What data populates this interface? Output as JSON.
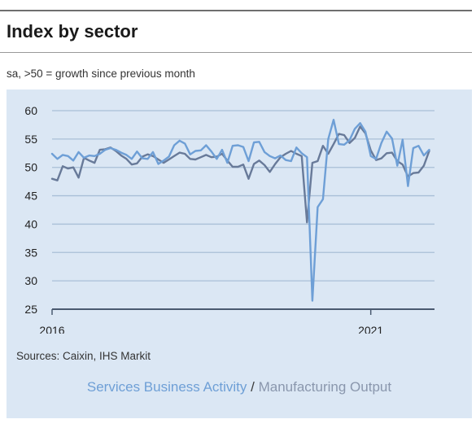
{
  "header": {
    "title": "Index by sector",
    "subtitle": "sa, >50 = growth since previous month"
  },
  "source": "Sources: Caixin, IHS Markit",
  "legend": {
    "separator": "/"
  },
  "colors": {
    "services": "#6e9fd6",
    "manufacturing": "#687a99",
    "grid": "#a9bfd7",
    "panel": "#dbe7f4",
    "axis": "#4a5a70"
  },
  "chart_data": {
    "type": "line",
    "title": "Index by sector",
    "subtitle": "sa, >50 = growth since previous month",
    "xlabel": "",
    "ylabel": "",
    "x_ticks": [
      "2016",
      "2021"
    ],
    "x_range": [
      2016.0,
      2022.0
    ],
    "y_ticks": [
      25,
      30,
      35,
      40,
      45,
      50,
      55,
      60
    ],
    "ylim": [
      25,
      60
    ],
    "grid": true,
    "legend_position": "bottom",
    "series": [
      {
        "name": "Services Business Activity",
        "start": 2016.0,
        "step": 0.0833333,
        "values": [
          52.4,
          51.5,
          52.2,
          52.0,
          51.2,
          52.7,
          51.7,
          52.1,
          52.0,
          52.4,
          53.1,
          53.4,
          53.1,
          52.6,
          52.2,
          51.5,
          52.8,
          51.6,
          51.5,
          52.7,
          50.6,
          51.2,
          51.9,
          53.9,
          54.7,
          54.2,
          52.3,
          52.9,
          53.0,
          53.9,
          52.8,
          51.5,
          53.1,
          50.8,
          53.8,
          53.9,
          53.6,
          51.1,
          54.4,
          54.5,
          52.7,
          52.0,
          51.6,
          52.1,
          51.3,
          51.1,
          53.5,
          52.5,
          51.8,
          26.5,
          43.0,
          44.4,
          55.0,
          58.4,
          54.1,
          54.0,
          54.8,
          56.8,
          57.8,
          56.3,
          52.0,
          51.5,
          54.3,
          56.3,
          55.1,
          50.3,
          54.9,
          46.7,
          53.4,
          53.8,
          52.1,
          53.1
        ],
        "values_note_unused": ""
      },
      {
        "name": "Manufacturing Output",
        "start": 2016.0,
        "step": 0.0833333,
        "values": [
          48.0,
          47.7,
          50.2,
          49.8,
          50.0,
          48.2,
          51.7,
          51.2,
          50.8,
          53.1,
          53.2,
          53.5,
          52.9,
          52.1,
          51.5,
          50.5,
          50.7,
          51.9,
          52.3,
          52.0,
          51.4,
          50.8,
          51.4,
          52.0,
          52.6,
          52.4,
          51.5,
          51.4,
          51.8,
          52.2,
          51.8,
          51.9,
          52.4,
          51.2,
          50.1,
          50.1,
          50.5,
          48.0,
          50.6,
          51.2,
          50.4,
          49.2,
          50.6,
          51.8,
          52.4,
          52.9,
          52.4,
          52.0,
          40.3,
          50.8,
          51.1,
          53.8,
          52.4,
          54.1,
          55.9,
          55.7,
          54.3,
          55.2,
          57.2,
          56.0,
          53.0,
          51.3,
          51.6,
          52.5,
          52.6,
          51.1,
          50.5,
          48.4,
          49.0,
          49.1,
          50.3,
          52.9
        ]
      }
    ]
  }
}
